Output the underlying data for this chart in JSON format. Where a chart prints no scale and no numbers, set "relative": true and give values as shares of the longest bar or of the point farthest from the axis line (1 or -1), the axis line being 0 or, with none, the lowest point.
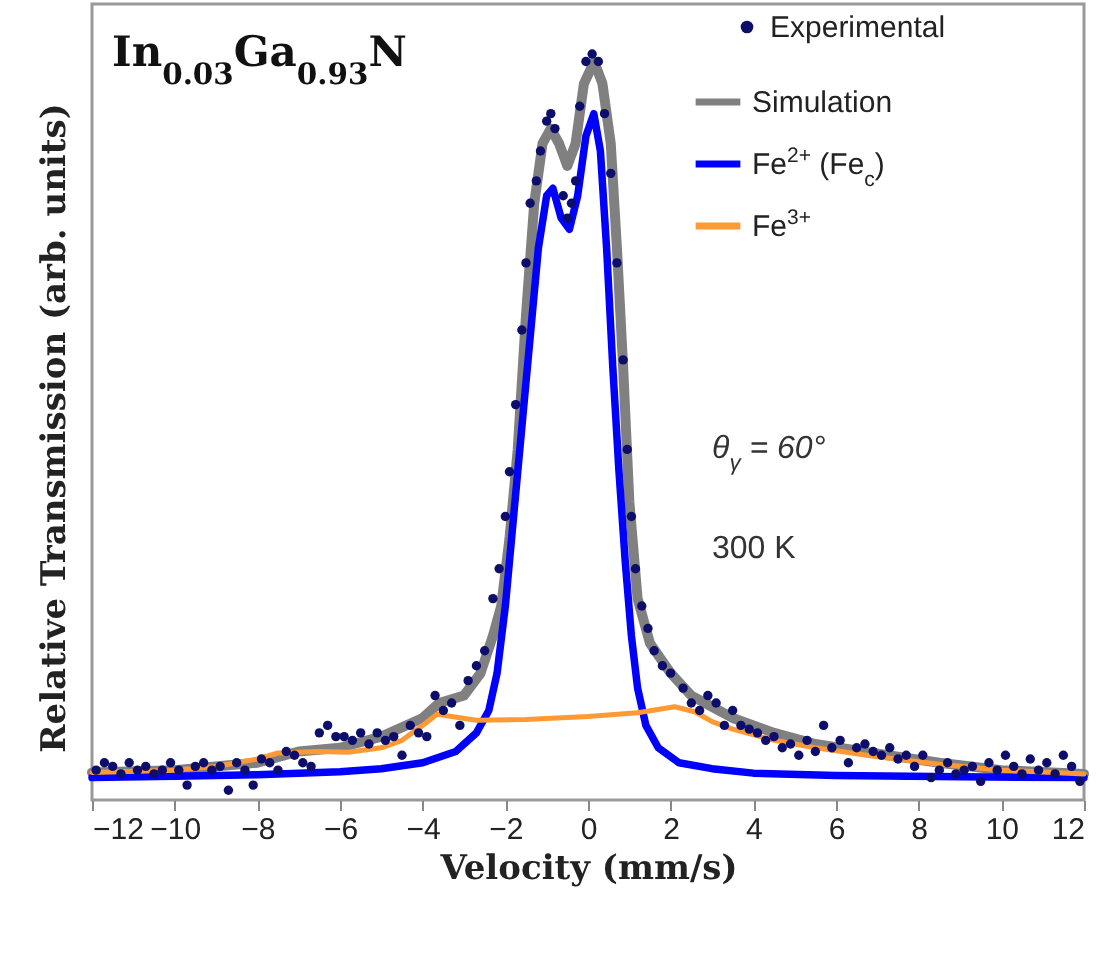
{
  "chart_data": {
    "type": "line",
    "title": "In$_{0.03}$Ga$_{0.93}$N",
    "xlabel": "Velocity (mm/s)",
    "ylabel": "Relative Transmission (arb. units)",
    "relative": true,
    "xlim": [
      -12,
      12
    ],
    "xticks": [
      -12,
      -10,
      -8,
      -6,
      -4,
      -2,
      0,
      2,
      4,
      6,
      8,
      10,
      12
    ],
    "grid": false,
    "legend": "top right",
    "annotations": [
      "θ$_{γ}$ = 60°",
      "300 K"
    ],
    "series": [
      {
        "name": "Experimental",
        "type": "scatter",
        "color": "#0d0d6b",
        "x": [
          -11.9,
          -11.7,
          -11.5,
          -11.3,
          -11.1,
          -10.9,
          -10.7,
          -10.5,
          -10.3,
          -10.1,
          -9.9,
          -9.7,
          -9.5,
          -9.3,
          -9.1,
          -8.9,
          -8.7,
          -8.5,
          -8.3,
          -8.1,
          -7.9,
          -7.7,
          -7.5,
          -7.3,
          -7.1,
          -6.9,
          -6.7,
          -6.5,
          -6.3,
          -6.1,
          -5.9,
          -5.7,
          -5.5,
          -5.3,
          -5.1,
          -4.9,
          -4.7,
          -4.5,
          -4.3,
          -4.1,
          -3.9,
          -3.7,
          -3.5,
          -3.3,
          -3.1,
          -2.9,
          -2.7,
          -2.5,
          -2.3,
          -2.15,
          -2.0,
          -1.9,
          -1.75,
          -1.6,
          -1.5,
          -1.4,
          -1.25,
          -1.15,
          -1.0,
          -0.9,
          -0.8,
          -0.6,
          -0.5,
          -0.4,
          -0.3,
          -0.2,
          -0.05,
          0.1,
          0.25,
          0.4,
          0.55,
          0.7,
          0.85,
          0.95,
          1.05,
          1.15,
          1.3,
          1.45,
          1.6,
          1.8,
          2.0,
          2.3,
          2.5,
          2.7,
          2.9,
          3.1,
          3.3,
          3.5,
          3.7,
          3.9,
          4.1,
          4.3,
          4.5,
          4.7,
          4.9,
          5.1,
          5.3,
          5.5,
          5.7,
          5.9,
          6.1,
          6.3,
          6.5,
          6.7,
          6.9,
          7.1,
          7.3,
          7.5,
          7.7,
          7.9,
          8.1,
          8.3,
          8.5,
          8.7,
          8.9,
          9.1,
          9.3,
          9.5,
          9.7,
          9.9,
          10.1,
          10.3,
          10.5,
          10.7,
          10.9,
          11.1,
          11.3,
          11.5,
          11.7,
          11.9
        ],
        "values": [
          0.04,
          0.05,
          0.045,
          0.035,
          0.05,
          0.04,
          0.045,
          0.035,
          0.04,
          0.05,
          0.04,
          0.02,
          0.045,
          0.05,
          0.04,
          0.045,
          0.013,
          0.05,
          0.04,
          0.02,
          0.055,
          0.05,
          0.04,
          0.065,
          0.06,
          0.05,
          0.045,
          0.09,
          0.1,
          0.085,
          0.085,
          0.08,
          0.09,
          0.075,
          0.09,
          0.08,
          0.085,
          0.06,
          0.1,
          0.09,
          0.085,
          0.14,
          0.12,
          0.13,
          0.1,
          0.16,
          0.18,
          0.2,
          0.27,
          0.31,
          0.38,
          0.44,
          0.53,
          0.63,
          0.72,
          0.8,
          0.83,
          0.87,
          0.91,
          0.92,
          0.9,
          0.81,
          0.78,
          0.8,
          0.83,
          0.93,
          0.99,
          1.0,
          0.99,
          0.92,
          0.84,
          0.72,
          0.59,
          0.47,
          0.38,
          0.31,
          0.26,
          0.23,
          0.2,
          0.18,
          0.17,
          0.15,
          0.13,
          0.12,
          0.14,
          0.13,
          0.1,
          0.12,
          0.1,
          0.095,
          0.09,
          0.08,
          0.085,
          0.07,
          0.075,
          0.06,
          0.08,
          0.065,
          0.1,
          0.07,
          0.08,
          0.05,
          0.07,
          0.075,
          0.065,
          0.06,
          0.07,
          0.055,
          0.06,
          0.045,
          0.06,
          0.03,
          0.04,
          0.05,
          0.035,
          0.04,
          0.045,
          0.025,
          0.05,
          0.04,
          0.06,
          0.045,
          0.035,
          0.055,
          0.04,
          0.05,
          0.035,
          0.06,
          0.045,
          0.025
        ]
      },
      {
        "name": "Simulation",
        "color": "#808080",
        "x": [
          -12,
          -10,
          -8,
          -7,
          -6,
          -5,
          -4,
          -3.6,
          -3,
          -2.6,
          -2.3,
          -2.1,
          -1.9,
          -1.7,
          -1.5,
          -1.3,
          -1.1,
          -0.9,
          -0.7,
          -0.5,
          -0.3,
          -0.1,
          0.15,
          0.35,
          0.55,
          0.7,
          0.85,
          1.0,
          1.2,
          1.5,
          2,
          2.5,
          3,
          3.5,
          4.5,
          5.5,
          7,
          8.5,
          10,
          12
        ],
        "values": [
          0.037,
          0.04,
          0.05,
          0.065,
          0.07,
          0.085,
          0.11,
          0.13,
          0.14,
          0.17,
          0.22,
          0.26,
          0.35,
          0.47,
          0.65,
          0.8,
          0.88,
          0.9,
          0.88,
          0.85,
          0.88,
          0.96,
          0.99,
          0.96,
          0.88,
          0.74,
          0.58,
          0.4,
          0.27,
          0.21,
          0.17,
          0.14,
          0.125,
          0.11,
          0.09,
          0.075,
          0.062,
          0.05,
          0.04,
          0.035
        ]
      },
      {
        "name": "Fe$^{2+}$ (Fe$_{c}$)",
        "color": "#0000ff",
        "x": [
          -12,
          -10,
          -8,
          -6,
          -5,
          -4,
          -3.2,
          -2.7,
          -2.4,
          -2.2,
          -2.0,
          -1.8,
          -1.6,
          -1.4,
          -1.2,
          -1.0,
          -0.85,
          -0.65,
          -0.45,
          -0.25,
          -0.05,
          0.14,
          0.3,
          0.45,
          0.6,
          0.75,
          0.9,
          1.05,
          1.2,
          1.4,
          1.7,
          2.2,
          3,
          4,
          6,
          9,
          12
        ],
        "values": [
          0.03,
          0.032,
          0.034,
          0.038,
          0.042,
          0.05,
          0.065,
          0.09,
          0.12,
          0.17,
          0.26,
          0.38,
          0.5,
          0.62,
          0.74,
          0.81,
          0.82,
          0.78,
          0.765,
          0.81,
          0.89,
          0.92,
          0.87,
          0.74,
          0.58,
          0.44,
          0.32,
          0.22,
          0.15,
          0.1,
          0.07,
          0.05,
          0.042,
          0.036,
          0.033,
          0.031,
          0.03
        ]
      },
      {
        "name": "Fe$^{3+}$",
        "color": "#ff9933",
        "x": [
          -12,
          -10,
          -9,
          -8,
          -7.5,
          -6.5,
          -5.8,
          -5,
          -4.5,
          -4,
          -3.65,
          -3.3,
          -2.7,
          -1.5,
          0,
          1.2,
          2.1,
          2.6,
          3,
          3.5,
          4.5,
          5.5,
          7,
          8.5,
          10,
          12
        ],
        "values": [
          0.037,
          0.04,
          0.045,
          0.055,
          0.063,
          0.065,
          0.064,
          0.07,
          0.08,
          0.1,
          0.115,
          0.112,
          0.107,
          0.108,
          0.112,
          0.117,
          0.125,
          0.118,
          0.105,
          0.095,
          0.08,
          0.07,
          0.058,
          0.048,
          0.04,
          0.035
        ]
      }
    ]
  }
}
